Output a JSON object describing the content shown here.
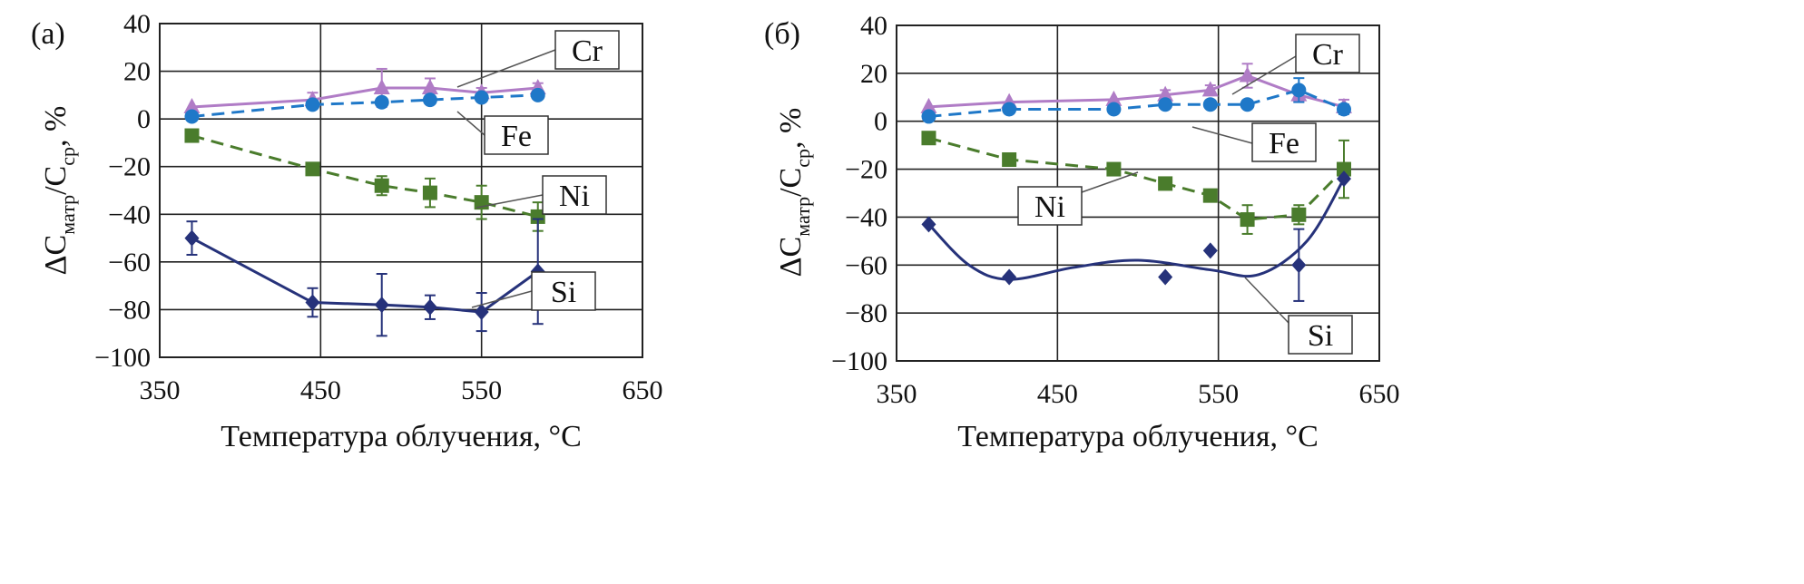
{
  "figure": {
    "ylabel_sub_1": "матр",
    "ylabel_sub_2": "ср"
  },
  "chart_data": [
    {
      "type": "line",
      "panel_label": "(a)",
      "xlabel": "Температура облучения, °C",
      "ylabel": "ΔC_матр/C_ср, %",
      "xlim": [
        350,
        650
      ],
      "ylim": [
        -100,
        40
      ],
      "xticks": [
        "350",
        "450",
        "550",
        "650"
      ],
      "yticks": [
        "40",
        "20",
        "0",
        "−20",
        "−40",
        "−60",
        "−80",
        "−100"
      ],
      "grid": true,
      "series": [
        {
          "name": "Cr",
          "color": "#b07cc6",
          "marker": "triangle",
          "dash": false,
          "smooth": false,
          "x": [
            370,
            445,
            488,
            518,
            550,
            585
          ],
          "y": [
            5,
            8,
            13,
            13,
            11,
            13
          ],
          "err": [
            0,
            3,
            8,
            4,
            2,
            2
          ]
        },
        {
          "name": "Fe",
          "color": "#1f78c8",
          "marker": "circle",
          "dash": true,
          "smooth": false,
          "x": [
            370,
            445,
            488,
            518,
            550,
            585
          ],
          "y": [
            1,
            6,
            7,
            8,
            9,
            10
          ],
          "err": [
            0,
            0,
            0,
            0,
            0,
            0
          ]
        },
        {
          "name": "Ni",
          "color": "#4a7c2c",
          "marker": "square",
          "dash": true,
          "smooth": false,
          "x": [
            370,
            445,
            488,
            518,
            550,
            585
          ],
          "y": [
            -7,
            -21,
            -28,
            -31,
            -35,
            -41
          ],
          "err": [
            0,
            0,
            4,
            6,
            7,
            6
          ]
        },
        {
          "name": "Si",
          "color": "#26327a",
          "marker": "diamond",
          "dash": false,
          "smooth": false,
          "x": [
            370,
            445,
            488,
            518,
            550,
            585
          ],
          "y": [
            -50,
            -77,
            -78,
            -79,
            -81,
            -64
          ],
          "err": [
            7,
            6,
            13,
            5,
            8,
            22
          ]
        }
      ]
    },
    {
      "type": "line",
      "panel_label": "(б)",
      "xlabel": "Температура облучения, °C",
      "ylabel": "ΔC_матр/C_ср, %",
      "xlim": [
        350,
        650
      ],
      "ylim": [
        -100,
        40
      ],
      "xticks": [
        "350",
        "450",
        "550",
        "650"
      ],
      "yticks": [
        "40",
        "20",
        "0",
        "−20",
        "−40",
        "−60",
        "−80",
        "−100"
      ],
      "grid": true,
      "series": [
        {
          "name": "Cr",
          "color": "#b07cc6",
          "marker": "triangle",
          "dash": false,
          "smooth": false,
          "x": [
            370,
            420,
            485,
            517,
            545,
            568,
            600,
            628
          ],
          "y": [
            6,
            8,
            9,
            11,
            13,
            19,
            11,
            6
          ],
          "err": [
            0,
            0,
            0,
            2,
            2,
            5,
            3,
            3
          ]
        },
        {
          "name": "Fe",
          "color": "#1f78c8",
          "marker": "circle",
          "dash": true,
          "smooth": false,
          "x": [
            370,
            420,
            485,
            517,
            545,
            568,
            600,
            628
          ],
          "y": [
            2,
            5,
            5,
            7,
            7,
            7,
            13,
            5
          ],
          "err": [
            0,
            0,
            0,
            0,
            0,
            0,
            5,
            2
          ]
        },
        {
          "name": "Ni",
          "color": "#4a7c2c",
          "marker": "square",
          "dash": true,
          "smooth": false,
          "x": [
            370,
            420,
            485,
            517,
            545,
            568,
            600,
            628
          ],
          "y": [
            -7,
            -16,
            -20,
            -26,
            -31,
            -41,
            -39,
            -20
          ],
          "err": [
            0,
            0,
            0,
            0,
            0,
            6,
            4,
            12
          ]
        },
        {
          "name": "Si",
          "color": "#26327a",
          "marker": "diamond",
          "dash": false,
          "smooth": true,
          "x": [
            370,
            420,
            517,
            545,
            600,
            628
          ],
          "y": [
            -43,
            -65,
            -65,
            -54,
            -60,
            -24
          ],
          "err": [
            0,
            0,
            0,
            0,
            15,
            0
          ],
          "curve": [
            [
              370,
              -43
            ],
            [
              395,
              -60
            ],
            [
              420,
              -66
            ],
            [
              460,
              -61
            ],
            [
              500,
              -58
            ],
            [
              545,
              -62
            ],
            [
              575,
              -64
            ],
            [
              605,
              -50
            ],
            [
              628,
              -24
            ]
          ]
        }
      ]
    }
  ]
}
